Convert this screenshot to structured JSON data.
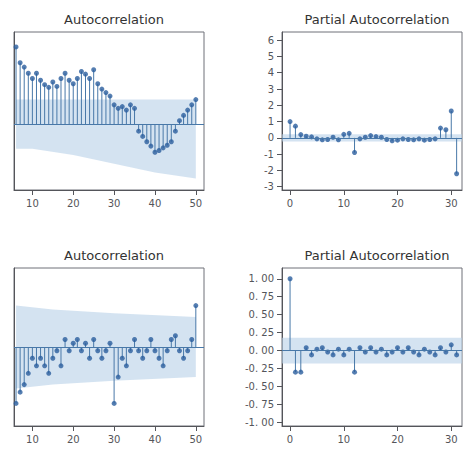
{
  "chart_data": [
    {
      "type": "stem",
      "title": "Autocorrelation",
      "x": [
        6,
        7,
        8,
        9,
        10,
        11,
        12,
        13,
        14,
        15,
        16,
        17,
        18,
        19,
        20,
        21,
        22,
        23,
        24,
        25,
        26,
        27,
        28,
        29,
        30,
        31,
        32,
        33,
        34,
        35,
        36,
        37,
        38,
        39,
        40,
        41,
        42,
        43,
        44,
        45,
        46,
        47,
        48,
        49,
        50
      ],
      "series": [
        {
          "type": "stem",
          "color": "#4878a8",
          "values": [
            0.88,
            0.7,
            0.65,
            0.58,
            0.52,
            0.58,
            0.5,
            0.45,
            0.42,
            0.48,
            0.43,
            0.52,
            0.58,
            0.5,
            0.46,
            0.52,
            0.6,
            0.57,
            0.52,
            0.62,
            0.46,
            0.4,
            0.36,
            0.32,
            0.22,
            0.18,
            0.2,
            0.16,
            0.22,
            0.18,
            -0.08,
            -0.14,
            -0.2,
            -0.25,
            -0.32,
            -0.3,
            -0.27,
            -0.24,
            -0.2,
            -0.08,
            0.04,
            0.1,
            0.16,
            0.22,
            0.28
          ]
        },
        {
          "type": "scatter",
          "marker": "circle",
          "color": "#2b5e9e",
          "values": [
            0.88,
            0.7,
            0.65,
            0.58,
            0.52,
            0.58,
            0.5,
            0.45,
            0.42,
            0.48,
            0.43,
            0.52,
            0.58,
            0.5,
            0.46,
            0.52,
            0.6,
            0.57,
            0.52,
            0.62,
            0.46,
            0.4,
            0.36,
            0.32,
            0.22,
            0.18,
            0.2,
            0.16,
            0.22,
            0.18,
            -0.08,
            -0.14,
            -0.2,
            -0.25,
            -0.32,
            -0.3,
            -0.27,
            -0.24,
            -0.2,
            -0.08,
            0.04,
            0.1,
            0.16,
            0.22,
            0.28
          ]
        }
      ],
      "conf_band": {
        "x": [
          6,
          10,
          20,
          30,
          40,
          50
        ],
        "upper": [
          0.28,
          0.28,
          0.28,
          0.28,
          0.28,
          0.28
        ],
        "lower": [
          -0.28,
          -0.28,
          -0.35,
          -0.45,
          -0.55,
          -0.62
        ],
        "color": "#b8d0e8"
      },
      "xlim": [
        5.5,
        52
      ],
      "xticks": [
        10,
        20,
        30,
        40,
        50
      ],
      "ylim": [
        -0.75,
        1.05
      ],
      "tick_labels": "x",
      "grid": false
    },
    {
      "type": "stem",
      "title": "Partial Autocorrelation",
      "x": [
        0,
        1,
        2,
        3,
        4,
        5,
        6,
        7,
        8,
        9,
        10,
        11,
        12,
        13,
        14,
        15,
        16,
        17,
        18,
        19,
        20,
        21,
        22,
        23,
        24,
        25,
        26,
        27,
        28,
        29,
        30,
        31
      ],
      "series": [
        {
          "type": "stem",
          "color": "#4878a8",
          "values": [
            1.0,
            0.72,
            0.2,
            0.1,
            0.06,
            -0.06,
            -0.12,
            -0.1,
            0.04,
            -0.12,
            0.22,
            0.28,
            -0.9,
            -0.06,
            0.04,
            0.14,
            0.08,
            0.04,
            -0.1,
            -0.18,
            -0.14,
            -0.06,
            -0.1,
            -0.12,
            -0.06,
            -0.14,
            -0.1,
            -0.06,
            0.6,
            0.5,
            1.65,
            -2.2
          ]
        },
        {
          "type": "scatter",
          "marker": "circle",
          "color": "#2b5e9e",
          "values": [
            1.0,
            0.72,
            0.2,
            0.1,
            0.06,
            -0.06,
            -0.12,
            -0.1,
            0.04,
            -0.12,
            0.22,
            0.28,
            -0.9,
            -0.06,
            0.04,
            0.14,
            0.08,
            0.04,
            -0.1,
            -0.18,
            -0.14,
            -0.06,
            -0.1,
            -0.12,
            -0.06,
            -0.14,
            -0.1,
            -0.06,
            0.6,
            0.5,
            1.65,
            -2.2
          ]
        }
      ],
      "conf_band": {
        "x": [
          -1.5,
          32
        ],
        "upper": [
          0.22,
          0.22
        ],
        "lower": [
          -0.22,
          -0.22
        ],
        "color": "#b8d0e8"
      },
      "xlim": [
        -1.5,
        32
      ],
      "xticks": [
        0,
        10,
        20,
        30
      ],
      "ylim": [
        -3.2,
        6.5
      ],
      "yticks": [
        -3,
        -2,
        -1,
        0,
        1,
        2,
        3,
        4,
        5,
        6
      ],
      "grid": false
    },
    {
      "type": "stem",
      "title": "Autocorrelation",
      "x": [
        6,
        7,
        8,
        9,
        10,
        11,
        12,
        13,
        14,
        15,
        16,
        17,
        18,
        19,
        20,
        21,
        22,
        23,
        24,
        25,
        26,
        27,
        28,
        29,
        30,
        31,
        32,
        33,
        34,
        35,
        36,
        37,
        38,
        39,
        40,
        41,
        42,
        43,
        44,
        45,
        46,
        47,
        48,
        49,
        50
      ],
      "series": [
        {
          "type": "stem",
          "color": "#4878a8",
          "values": [
            -0.3,
            -0.24,
            -0.2,
            -0.14,
            -0.06,
            -0.1,
            -0.06,
            -0.1,
            -0.14,
            -0.06,
            -0.02,
            -0.1,
            0.04,
            -0.02,
            0.02,
            0.04,
            -0.02,
            0.02,
            -0.06,
            0.04,
            -0.02,
            -0.06,
            -0.02,
            0.02,
            -0.3,
            -0.16,
            -0.06,
            -0.1,
            -0.02,
            0.04,
            -0.02,
            -0.06,
            -0.02,
            0.04,
            -0.02,
            -0.06,
            -0.1,
            -0.02,
            0.04,
            0.06,
            -0.02,
            -0.06,
            -0.02,
            0.04,
            0.22
          ]
        },
        {
          "type": "scatter",
          "marker": "circle",
          "color": "#2b5e9e",
          "values": [
            -0.3,
            -0.24,
            -0.2,
            -0.14,
            -0.06,
            -0.1,
            -0.06,
            -0.1,
            -0.14,
            -0.06,
            -0.02,
            -0.1,
            0.04,
            -0.02,
            0.02,
            0.04,
            -0.02,
            0.02,
            -0.06,
            0.04,
            -0.02,
            -0.06,
            -0.02,
            0.02,
            -0.3,
            -0.16,
            -0.06,
            -0.1,
            -0.02,
            0.04,
            -0.02,
            -0.06,
            -0.02,
            0.04,
            -0.02,
            -0.06,
            -0.1,
            -0.02,
            0.04,
            0.06,
            -0.02,
            -0.06,
            -0.02,
            0.04,
            0.22
          ]
        }
      ],
      "conf_band": {
        "x": [
          6,
          15,
          30,
          50
        ],
        "upper": [
          0.22,
          0.2,
          0.18,
          0.16
        ],
        "lower": [
          -0.22,
          -0.2,
          -0.18,
          -0.16
        ],
        "color": "#b8d0e8"
      },
      "xlim": [
        5.5,
        52
      ],
      "xticks": [
        10,
        20,
        30,
        40,
        50
      ],
      "ylim": [
        -0.42,
        0.42
      ],
      "tick_labels": "x",
      "grid": false
    },
    {
      "type": "stem",
      "title": "Partial Autocorrelation",
      "x": [
        0,
        1,
        2,
        3,
        4,
        5,
        6,
        7,
        8,
        9,
        10,
        11,
        12,
        13,
        14,
        15,
        16,
        17,
        18,
        19,
        20,
        21,
        22,
        23,
        24,
        25,
        26,
        27,
        28,
        29,
        30,
        31
      ],
      "series": [
        {
          "type": "stem",
          "color": "#4878a8",
          "values": [
            1.0,
            -0.3,
            -0.3,
            0.04,
            -0.06,
            0.02,
            0.04,
            -0.02,
            -0.06,
            0.02,
            -0.06,
            0.02,
            -0.3,
            0.04,
            -0.02,
            0.04,
            -0.02,
            0.02,
            -0.06,
            -0.02,
            0.04,
            -0.02,
            0.04,
            -0.02,
            -0.06,
            0.02,
            -0.02,
            -0.06,
            0.04,
            -0.02,
            0.08,
            -0.06
          ]
        },
        {
          "type": "scatter",
          "marker": "circle",
          "color": "#2b5e9e",
          "values": [
            1.0,
            -0.3,
            -0.3,
            0.04,
            -0.06,
            0.02,
            0.04,
            -0.02,
            -0.06,
            0.02,
            -0.06,
            0.02,
            -0.3,
            0.04,
            -0.02,
            0.04,
            -0.02,
            0.02,
            -0.06,
            -0.02,
            0.04,
            -0.02,
            0.04,
            -0.02,
            -0.06,
            0.02,
            -0.02,
            -0.06,
            0.04,
            -0.02,
            0.08,
            -0.06
          ]
        }
      ],
      "conf_band": {
        "x": [
          -1.5,
          32
        ],
        "upper": [
          0.18,
          0.18
        ],
        "lower": [
          -0.18,
          -0.18
        ],
        "color": "#b8d0e8"
      },
      "xlim": [
        -1.5,
        32
      ],
      "xticks": [
        0,
        10,
        20,
        30
      ],
      "ylim": [
        -1.05,
        1.15
      ],
      "yticks": [
        {
          "value": -1.0,
          "label": "-1. 00"
        },
        {
          "value": -0.75,
          "label": "-0. 75"
        },
        {
          "value": -0.5,
          "label": "-0. 50"
        },
        {
          "value": -0.25,
          "label": "-0. 25"
        },
        {
          "value": 0.0,
          "label": "0. 00"
        },
        {
          "value": 0.25,
          "label": "0. 25"
        },
        {
          "value": 0.5,
          "label": "0. 50"
        },
        {
          "value": 0.75,
          "label": "0. 75"
        },
        {
          "value": 1.0,
          "label": "1. 00"
        }
      ],
      "grid": false
    }
  ]
}
